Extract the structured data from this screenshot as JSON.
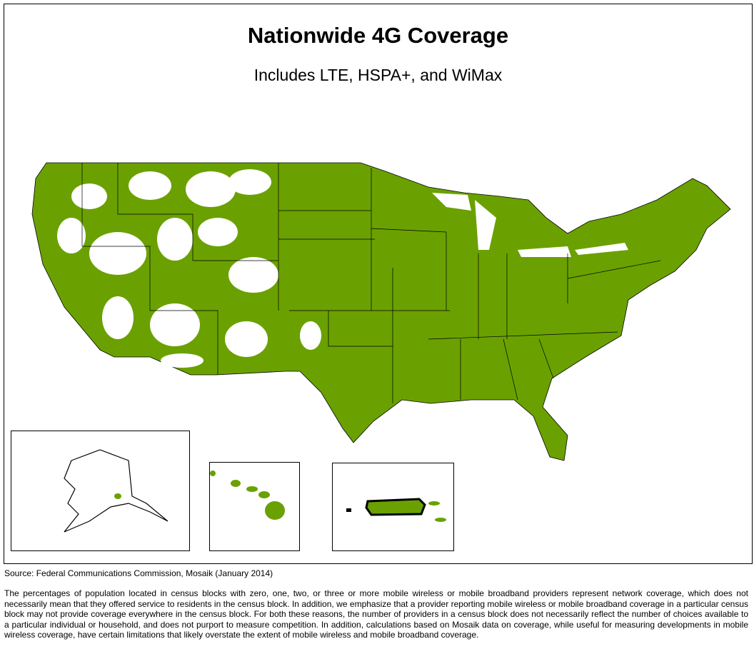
{
  "header": {
    "title": "Nationwide 4G Coverage",
    "subtitle": "Includes LTE, HSPA+, and WiMax"
  },
  "footer": {
    "source": "Source: Federal Communications Commission, Mosaik (January 2014)",
    "note": "The percentages of population located in census blocks with zero, one, two, or three or more mobile wireless or mobile broadband providers represent network coverage, which does not necessarily mean that they offered service to residents in the census block. In addition, we emphasize that a provider reporting mobile wireless or mobile broadband coverage in a particular census block may not provide coverage everywhere in the census block. For both these reasons, the number of providers in a census block does not necessarily reflect the number of choices available to a particular individual or household, and does not purport to measure competition. In addition, calculations based on Mosaik data on coverage, while useful for measuring developments in mobile wireless coverage, have certain limitations that likely overstate the extent of mobile wireless and mobile broadband coverage."
  }
}
